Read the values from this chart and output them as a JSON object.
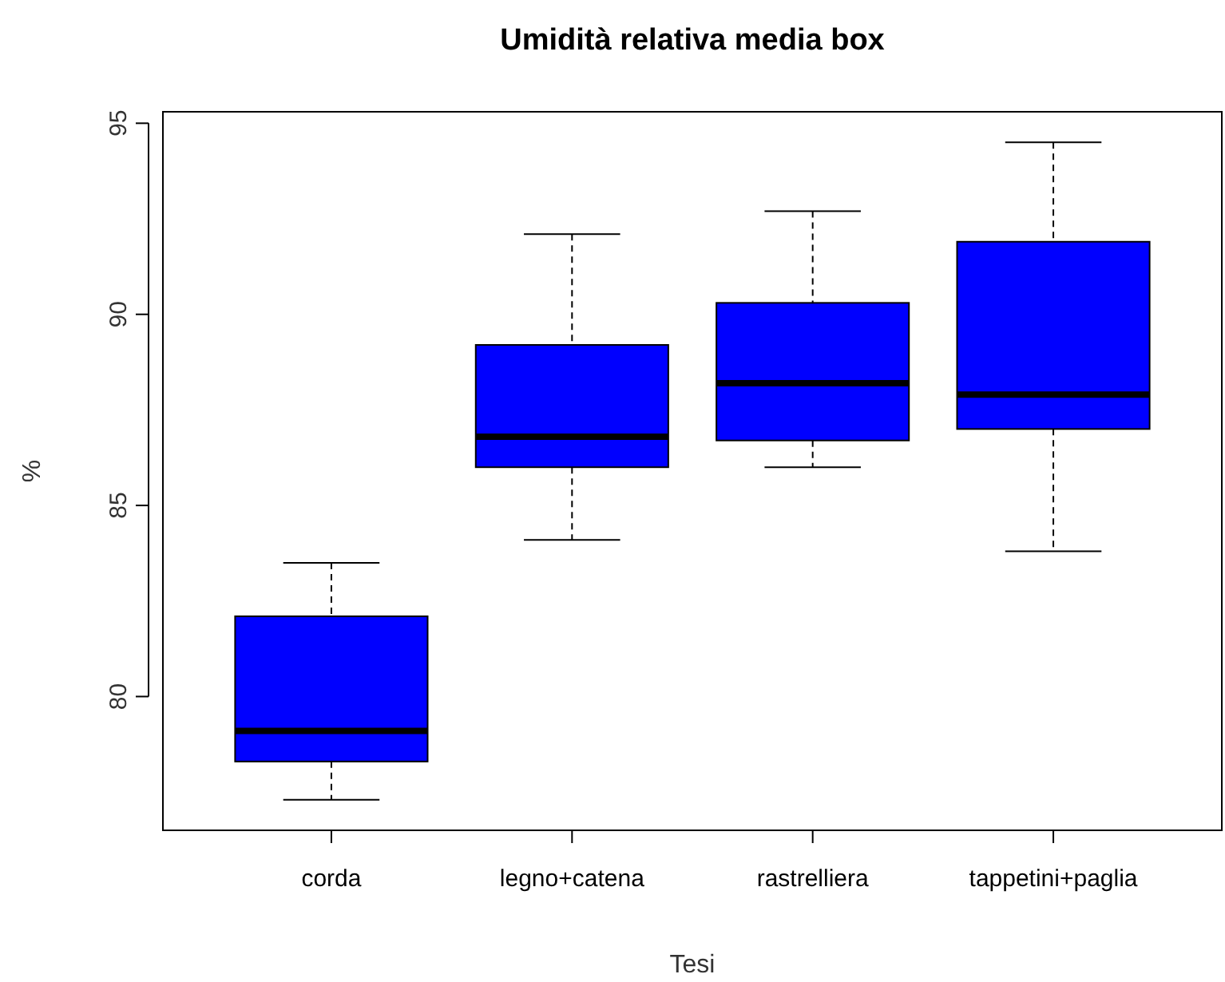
{
  "chart_data": {
    "type": "box",
    "title": "Umidità relativa media box",
    "xlabel": "Tesi",
    "ylabel": "%",
    "categories": [
      "corda",
      "legno+catena",
      "rastrelliera",
      "tappetini+paglia"
    ],
    "color": "#0000ff",
    "boxes": [
      {
        "low": 77.3,
        "q1": 78.3,
        "median": 79.1,
        "q3": 82.1,
        "high": 83.5
      },
      {
        "low": 84.1,
        "q1": 86.0,
        "median": 86.8,
        "q3": 89.2,
        "high": 92.1
      },
      {
        "low": 86.0,
        "q1": 86.7,
        "median": 88.2,
        "q3": 90.3,
        "high": 92.7
      },
      {
        "low": 83.8,
        "q1": 87.0,
        "median": 87.9,
        "q3": 91.9,
        "high": 94.5
      }
    ],
    "ylim": [
      76.5,
      95.3
    ],
    "yticks": [
      80,
      85,
      90,
      95
    ],
    "grid": false
  }
}
